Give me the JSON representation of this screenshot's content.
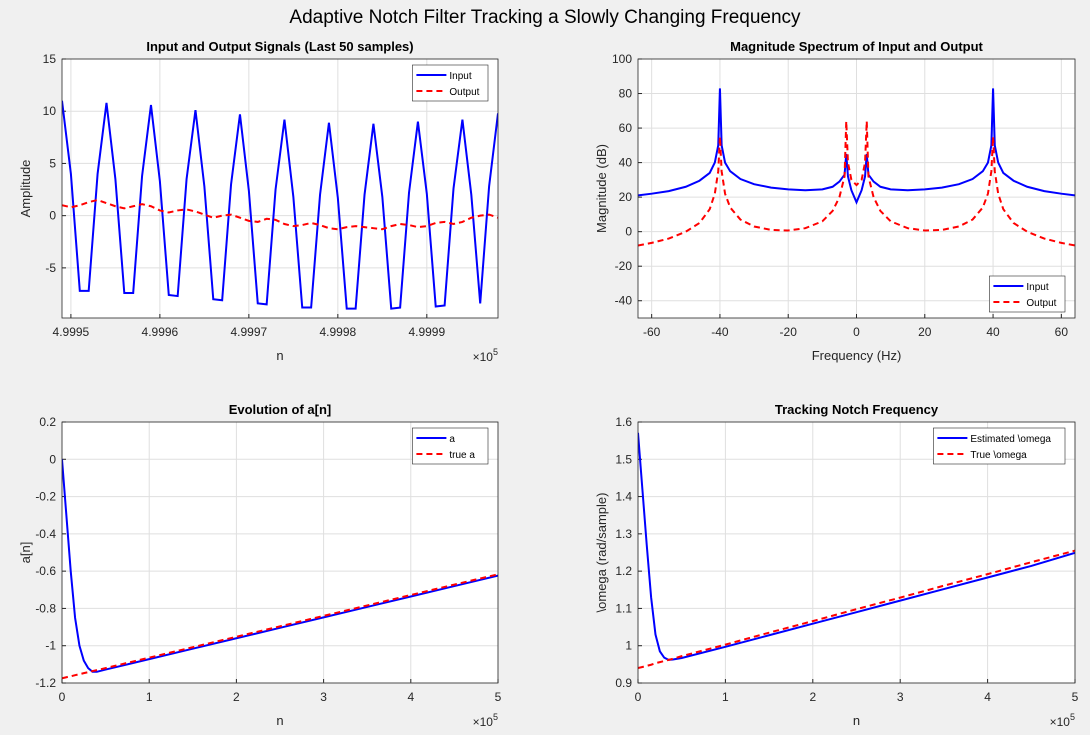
{
  "figure_title": "Adaptive Notch Filter Tracking a Slowly Changing Frequency",
  "chart_data": [
    {
      "type": "line",
      "title": "Input and Output Signals (Last 50 samples)",
      "xlabel": "n",
      "ylabel": "Amplitude",
      "x": [
        499949,
        499950,
        499951,
        499952,
        499953,
        499954,
        499955,
        499956,
        499957,
        499958,
        499959,
        499960,
        499961,
        499962,
        499963,
        499964,
        499965,
        499966,
        499967,
        499968,
        499969,
        499970,
        499971,
        499972,
        499973,
        499974,
        499975,
        499976,
        499977,
        499978,
        499979,
        499980,
        499981,
        499982,
        499983,
        499984,
        499985,
        499986,
        499987,
        499988,
        499989,
        499990,
        499991,
        499992,
        499993,
        499994,
        499995,
        499996,
        499997,
        499998
      ],
      "series": [
        {
          "name": "Input",
          "color": "#0000ff",
          "style": "solid",
          "values": [
            11,
            4,
            -7.2,
            -7.2,
            4,
            10.8,
            3.5,
            -7.4,
            -7.4,
            3.8,
            10.6,
            3.3,
            -7.6,
            -7.7,
            3.5,
            10.1,
            2.8,
            -8.0,
            -8.1,
            3.0,
            9.7,
            2.4,
            -8.4,
            -8.5,
            2.5,
            9.2,
            1.8,
            -8.8,
            -8.8,
            2.0,
            8.9,
            1.7,
            -8.9,
            -8.9,
            2.0,
            8.8,
            1.8,
            -8.9,
            -8.8,
            2.2,
            9.0,
            2.1,
            -8.7,
            -8.6,
            2.6,
            9.2,
            2.0,
            -8.4,
            2.8,
            9.8
          ]
        },
        {
          "name": "Output",
          "color": "#ff0000",
          "style": "dashed",
          "values": [
            1.0,
            0.8,
            1.0,
            1.3,
            1.5,
            1.2,
            0.9,
            0.7,
            0.9,
            1.1,
            0.9,
            0.5,
            0.3,
            0.5,
            0.6,
            0.4,
            0.1,
            -0.2,
            0.0,
            0.1,
            -0.2,
            -0.5,
            -0.6,
            -0.3,
            -0.4,
            -0.8,
            -1.0,
            -0.9,
            -0.7,
            -0.9,
            -1.2,
            -1.3,
            -1.1,
            -1.0,
            -1.1,
            -1.2,
            -1.3,
            -1.0,
            -0.8,
            -0.9,
            -1.1,
            -1.0,
            -0.7,
            -0.6,
            -0.8,
            -0.6,
            -0.2,
            0.0,
            0.1,
            -0.2
          ]
        }
      ],
      "xlim": [
        499949,
        499998
      ],
      "ylim": [
        -9.8,
        15
      ],
      "xticks": [
        {
          "value": 499950,
          "label": "4.9995"
        },
        {
          "value": 499960,
          "label": "4.9996"
        },
        {
          "value": 499970,
          "label": "4.9997"
        },
        {
          "value": 499980,
          "label": "4.9998"
        },
        {
          "value": 499990,
          "label": "4.9999"
        }
      ],
      "yticks": [
        -5,
        0,
        5,
        10,
        15
      ],
      "x_multiplier": [
        "×10",
        "5"
      ],
      "grid": true,
      "legend": "upper right"
    },
    {
      "type": "line",
      "title": "Magnitude Spectrum of Input and Output",
      "xlabel": "Frequency (Hz)",
      "ylabel": "Magnitude (dB)",
      "x": [
        -64,
        -60,
        -55,
        -50,
        -46,
        -43,
        -41.5,
        -40.5,
        -40,
        -39.5,
        -38.5,
        -37,
        -34,
        -30,
        -25,
        -20,
        -15,
        -10,
        -7,
        -5,
        -3.5,
        -3,
        -2.5,
        -1.5,
        0,
        1.5,
        2.5,
        3,
        3.5,
        5,
        7,
        10,
        15,
        20,
        25,
        30,
        34,
        37,
        38.5,
        39.5,
        40,
        40.5,
        41.5,
        43,
        46,
        50,
        55,
        60,
        64
      ],
      "series": [
        {
          "name": "Input",
          "color": "#0000ff",
          "style": "solid",
          "values": [
            21,
            22,
            23.5,
            26,
            29.5,
            34,
            40,
            50,
            83,
            50,
            40,
            35,
            30.5,
            27.5,
            25.5,
            24.5,
            24,
            24.5,
            26,
            29,
            33,
            45,
            32,
            24,
            17,
            24,
            32,
            45,
            33,
            29,
            26,
            24.5,
            24,
            24.5,
            25.5,
            27.5,
            30.5,
            35,
            40,
            50,
            83,
            50,
            40,
            34,
            29.5,
            26,
            23.5,
            22,
            21
          ]
        },
        {
          "name": "Output",
          "color": "#ff0000",
          "style": "dashed",
          "values": [
            -8,
            -6.5,
            -4,
            0,
            5,
            13,
            22,
            35,
            55,
            35,
            22,
            14,
            7,
            3,
            1,
            0.7,
            2,
            6,
            12,
            20,
            32,
            64,
            40,
            30,
            27,
            30,
            40,
            64,
            32,
            20,
            12,
            6,
            2,
            0.7,
            1,
            3,
            7,
            14,
            22,
            35,
            55,
            35,
            22,
            13,
            5,
            0,
            -4,
            -6.5,
            -8
          ]
        }
      ],
      "xlim": [
        -64,
        64
      ],
      "ylim": [
        -50,
        100
      ],
      "xticks": [
        -60,
        -40,
        -20,
        0,
        20,
        40,
        60
      ],
      "yticks": [
        -40,
        -20,
        0,
        20,
        40,
        60,
        80,
        100
      ],
      "grid": true,
      "legend": "lower right"
    },
    {
      "type": "line",
      "title": "Evolution of a[n]",
      "xlabel": "n",
      "ylabel": "a[n]",
      "x": [
        0,
        5000,
        10000,
        15000,
        20000,
        25000,
        30000,
        35000,
        40000,
        50000,
        100000,
        150000,
        200000,
        250000,
        300000,
        350000,
        400000,
        450000,
        500000
      ],
      "series": [
        {
          "name": "a",
          "color": "#0000ff",
          "style": "solid",
          "values": [
            0,
            -0.3,
            -0.6,
            -0.85,
            -1.0,
            -1.08,
            -1.12,
            -1.14,
            -1.14,
            -1.128,
            -1.072,
            -1.016,
            -0.96,
            -0.904,
            -0.848,
            -0.792,
            -0.736,
            -0.68,
            -0.624
          ]
        },
        {
          "name": "true a",
          "color": "#ff0000",
          "style": "dashed",
          "values": [
            -1.175,
            -1.169,
            -1.164,
            -1.158,
            -1.153,
            -1.147,
            -1.142,
            -1.136,
            -1.131,
            -1.12,
            -1.064,
            -1.008,
            -0.952,
            -0.896,
            -0.84,
            -0.784,
            -0.728,
            -0.672,
            -0.617
          ]
        }
      ],
      "xlim": [
        0,
        500000
      ],
      "ylim": [
        -1.2,
        0.2
      ],
      "xticks": [
        0,
        {
          "value": 100000,
          "label": "1"
        },
        {
          "value": 200000,
          "label": "2"
        },
        {
          "value": 300000,
          "label": "3"
        },
        {
          "value": 400000,
          "label": "4"
        },
        {
          "value": 500000,
          "label": "5"
        }
      ],
      "yticks": [
        -1.2,
        -1,
        -0.8,
        -0.6,
        -0.4,
        -0.2,
        0,
        0.2
      ],
      "x_multiplier": [
        "×10",
        "5"
      ],
      "grid": true,
      "legend": "upper right"
    },
    {
      "type": "line",
      "title": "Tracking Notch Frequency",
      "xlabel": "n",
      "ylabel": "\\omega (rad/sample)",
      "x": [
        0,
        5000,
        10000,
        15000,
        20000,
        25000,
        30000,
        35000,
        40000,
        50000,
        100000,
        150000,
        200000,
        250000,
        300000,
        350000,
        400000,
        450000,
        500000
      ],
      "series": [
        {
          "name": "Estimated \\omega",
          "color": "#0000ff",
          "style": "solid",
          "values": [
            1.571,
            1.42,
            1.27,
            1.13,
            1.03,
            0.985,
            0.968,
            0.962,
            0.963,
            0.967,
            0.997,
            1.028,
            1.059,
            1.09,
            1.121,
            1.152,
            1.183,
            1.214,
            1.249
          ]
        },
        {
          "name": "True \\omega",
          "color": "#ff0000",
          "style": "dashed",
          "values": [
            0.94,
            0.943,
            0.946,
            0.949,
            0.953,
            0.956,
            0.959,
            0.962,
            0.965,
            0.972,
            1.003,
            1.035,
            1.066,
            1.098,
            1.129,
            1.161,
            1.192,
            1.224,
            1.255
          ]
        }
      ],
      "xlim": [
        0,
        500000
      ],
      "ylim": [
        0.9,
        1.6
      ],
      "xticks": [
        0,
        {
          "value": 100000,
          "label": "1"
        },
        {
          "value": 200000,
          "label": "2"
        },
        {
          "value": 300000,
          "label": "3"
        },
        {
          "value": 400000,
          "label": "4"
        },
        {
          "value": 500000,
          "label": "5"
        }
      ],
      "yticks": [
        0.9,
        1,
        1.1,
        1.2,
        1.3,
        1.4,
        1.5,
        1.6
      ],
      "x_multiplier": [
        "×10",
        "5"
      ],
      "grid": true,
      "legend": "upper right"
    }
  ]
}
